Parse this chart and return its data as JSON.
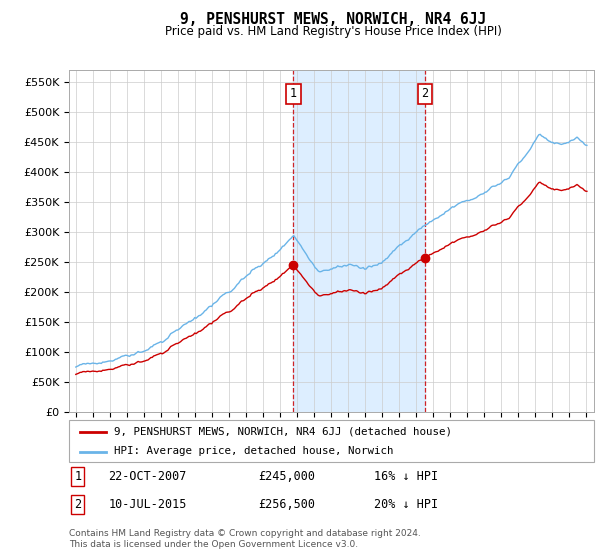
{
  "title": "9, PENSHURST MEWS, NORWICH, NR4 6JJ",
  "subtitle": "Price paid vs. HM Land Registry's House Price Index (HPI)",
  "ylabel_ticks": [
    "£0",
    "£50K",
    "£100K",
    "£150K",
    "£200K",
    "£250K",
    "£300K",
    "£350K",
    "£400K",
    "£450K",
    "£500K",
    "£550K"
  ],
  "ytick_values": [
    0,
    50000,
    100000,
    150000,
    200000,
    250000,
    300000,
    350000,
    400000,
    450000,
    500000,
    550000
  ],
  "ylim": [
    0,
    570000
  ],
  "hpi_color": "#6ab4e8",
  "price_color": "#cc0000",
  "shade_color": "#ddeeff",
  "sale1_x": 2007.81,
  "sale2_x": 2015.53,
  "sale1_price": 245000,
  "sale2_price": 256500,
  "sale1_date": "22-OCT-2007",
  "sale2_date": "10-JUL-2015",
  "sale1_label": "16% ↓ HPI",
  "sale2_label": "20% ↓ HPI",
  "legend_label_price": "9, PENSHURST MEWS, NORWICH, NR4 6JJ (detached house)",
  "legend_label_hpi": "HPI: Average price, detached house, Norwich",
  "footnote": "Contains HM Land Registry data © Crown copyright and database right 2024.\nThis data is licensed under the Open Government Licence v3.0.",
  "background_color": "#ffffff",
  "grid_color": "#cccccc"
}
